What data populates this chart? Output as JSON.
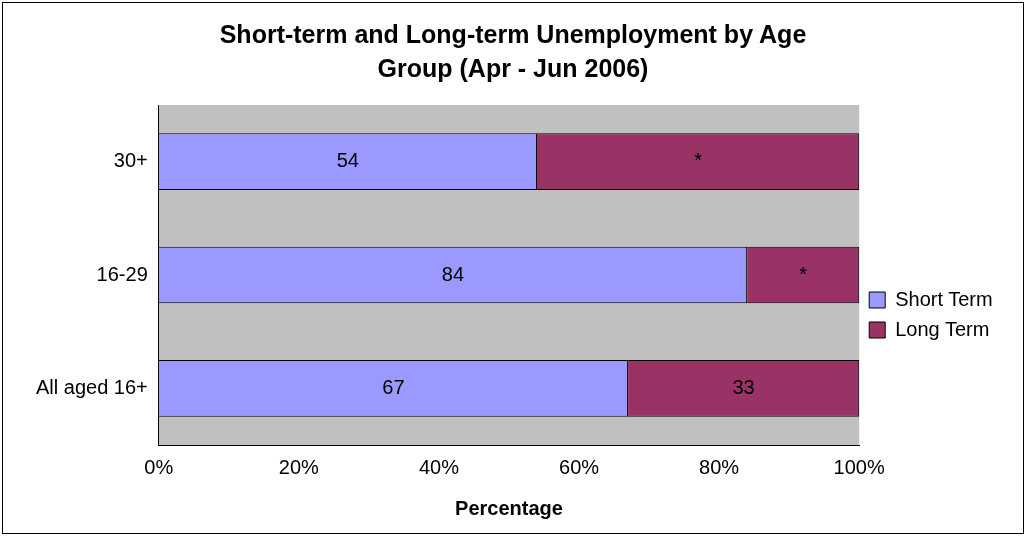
{
  "chart_data": {
    "type": "bar",
    "title": "Short-term and Long-term Unemployment by Age Group (Apr - Jun 2006)",
    "xlabel": "Percentage",
    "orientation": "horizontal",
    "stacked": true,
    "categories": [
      "30+",
      "16-29",
      "All aged 16+"
    ],
    "series": [
      {
        "name": "Short Term",
        "color": "#9999ff",
        "values": [
          54,
          84,
          67
        ],
        "value_labels": [
          "54",
          "84",
          "67"
        ]
      },
      {
        "name": "Long Term",
        "color": "#993366",
        "values": [
          46,
          16,
          33
        ],
        "value_labels": [
          "*",
          "*",
          "33"
        ]
      }
    ],
    "xlim": [
      0,
      100
    ],
    "xticks": [
      {
        "value": 0,
        "label": "0%"
      },
      {
        "value": 20,
        "label": "20%"
      },
      {
        "value": 40,
        "label": "40%"
      },
      {
        "value": 60,
        "label": "60%"
      },
      {
        "value": 80,
        "label": "80%"
      },
      {
        "value": 100,
        "label": "100%"
      }
    ],
    "grid": false,
    "legend": "right"
  }
}
